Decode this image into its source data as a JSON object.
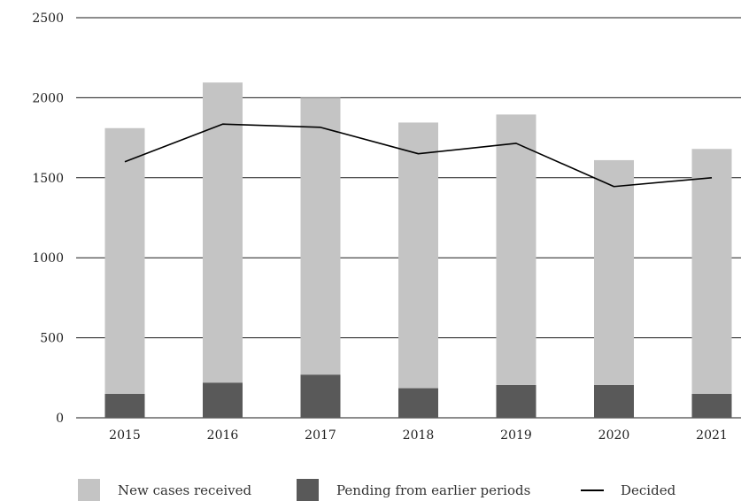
{
  "chart_data": {
    "type": "bar",
    "stacked": true,
    "categories": [
      "2015",
      "2016",
      "2017",
      "2018",
      "2019",
      "2020",
      "2021"
    ],
    "series": [
      {
        "name": "Pending from earlier periods",
        "kind": "bar",
        "color": "#595959",
        "values": [
          150,
          220,
          270,
          185,
          205,
          205,
          150
        ]
      },
      {
        "name": "New cases received",
        "kind": "bar",
        "color": "#c4c4c4",
        "values": [
          1660,
          1875,
          1730,
          1660,
          1690,
          1405,
          1530
        ]
      },
      {
        "name": "Decided",
        "kind": "line",
        "color": "#000000",
        "values": [
          1600,
          1835,
          1815,
          1650,
          1715,
          1445,
          1500
        ]
      }
    ],
    "title": "",
    "xlabel": "",
    "ylabel": "",
    "ylim": [
      0,
      2500
    ],
    "yticks": [
      "0",
      "500",
      "1000",
      "1500",
      "2000",
      "2500"
    ],
    "grid": "horizontal",
    "legend": {
      "position": "bottom",
      "items": [
        {
          "label": "New cases received",
          "marker": "square",
          "color": "#c4c4c4"
        },
        {
          "label": "Pending from earlier periods",
          "marker": "square",
          "color": "#595959"
        },
        {
          "label": "Decided",
          "marker": "line",
          "color": "#000000"
        }
      ]
    }
  }
}
